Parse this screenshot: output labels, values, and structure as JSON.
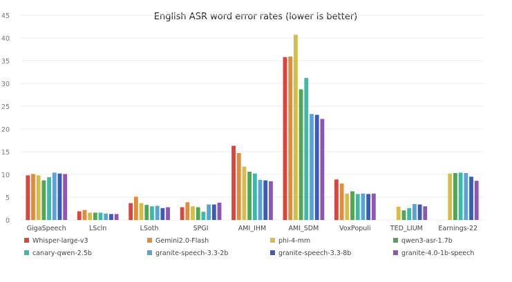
{
  "chart_data": {
    "type": "bar",
    "title": "English ASR word error rates (lower is better)",
    "xlabel": "",
    "ylabel": "",
    "ylim": [
      0,
      45
    ],
    "yticks": [
      0,
      5,
      10,
      15,
      20,
      25,
      30,
      35,
      40,
      45
    ],
    "grid": true,
    "legend_position": "bottom",
    "categories": [
      "GigaSpeech",
      "LScln",
      "LSoth",
      "SPGI",
      "AMI_IHM",
      "AMI_SDM",
      "VoxPopuli",
      "TED_LIUM",
      "Earnings-22"
    ],
    "series": [
      {
        "name": "Whisper-large-v3",
        "color": "#d9463e",
        "values": [
          9.8,
          1.9,
          3.7,
          2.8,
          16.3,
          35.8,
          8.9,
          null,
          null
        ]
      },
      {
        "name": "Gemini2.0-Flash",
        "color": "#e08c3c",
        "values": [
          10.1,
          2.2,
          5.1,
          3.9,
          14.7,
          35.9,
          8.0,
          null,
          null
        ]
      },
      {
        "name": "phi-4-mm",
        "color": "#d7bc4a",
        "values": [
          9.8,
          1.6,
          3.7,
          3.0,
          11.7,
          40.7,
          5.8,
          2.9,
          10.2
        ]
      },
      {
        "name": "qwen3-asr-1.7b",
        "color": "#52a552",
        "values": [
          8.7,
          1.6,
          3.3,
          2.8,
          10.6,
          28.7,
          6.3,
          2.1,
          10.3
        ]
      },
      {
        "name": "canary-qwen-2.5b",
        "color": "#3fb8a8",
        "values": [
          9.4,
          1.6,
          3.0,
          1.8,
          10.2,
          31.2,
          5.7,
          2.6,
          10.4
        ]
      },
      {
        "name": "granite-speech-3.3-2b",
        "color": "#5aa3d4",
        "values": [
          10.4,
          1.4,
          3.1,
          3.4,
          8.8,
          23.3,
          5.8,
          3.5,
          10.3
        ]
      },
      {
        "name": "granite-speech-3.3-8b",
        "color": "#3b5bb8",
        "values": [
          10.2,
          1.3,
          2.6,
          3.4,
          8.7,
          23.1,
          5.7,
          3.4,
          9.5
        ]
      },
      {
        "name": "granite-4.0-1b-speech",
        "color": "#8e55b5",
        "values": [
          10.1,
          1.3,
          2.8,
          3.8,
          8.5,
          22.2,
          5.8,
          3.0,
          8.6
        ]
      }
    ]
  }
}
